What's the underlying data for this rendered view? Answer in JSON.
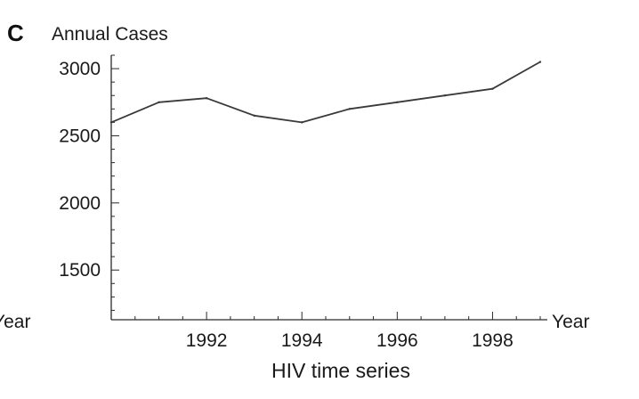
{
  "panel_label": "C",
  "left_fragment": "Year",
  "caption": "HIV time series",
  "colors": {
    "line": "#3a3a3a",
    "axis": "#2a2a2a",
    "text": "#1a1a1a"
  },
  "chart_data": {
    "type": "line",
    "ylabel": "Annual Cases",
    "xlabel": "Year",
    "x": [
      1990,
      1991,
      1992,
      1993,
      1994,
      1995,
      1996,
      1997,
      1998,
      1999
    ],
    "y": [
      2600,
      2750,
      2780,
      2650,
      2600,
      2700,
      2750,
      2800,
      2850,
      3050
    ],
    "xlim": [
      1990,
      1999
    ],
    "ylim": [
      1130,
      3100
    ],
    "xticks": [
      1992,
      1994,
      1996,
      1998
    ],
    "yticks": [
      1500,
      2000,
      2500,
      3000
    ],
    "grid": false,
    "legend": "none"
  }
}
